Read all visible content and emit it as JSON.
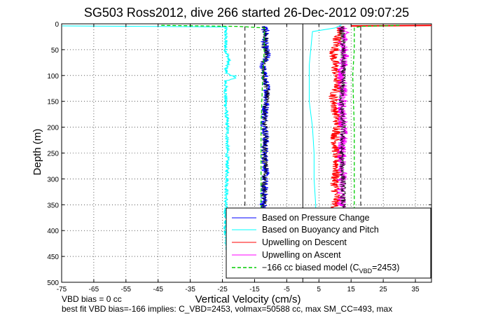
{
  "chart_data": {
    "type": "line",
    "title": "SG503 Ross2012, dive 266 started 26-Dec-2012 09:07:25",
    "xlabel": "Vertical Velocity (cm/s)",
    "ylabel": "Depth (m)",
    "xlim": [
      -75,
      40
    ],
    "ylim": [
      0,
      500
    ],
    "y_reversed": true,
    "xticks": [
      -75,
      -65,
      -55,
      -45,
      -35,
      -25,
      -15,
      -5,
      5,
      15,
      25,
      35
    ],
    "yticks": [
      0,
      50,
      100,
      150,
      200,
      250,
      300,
      350,
      400,
      450,
      500
    ],
    "grid": true,
    "grid_style": "dotted",
    "legend_position": "bottom-right",
    "series": [
      {
        "name": "Based on Pressure Change",
        "color": "#0000ff",
        "noise": 1.2,
        "points": [
          [
            -12,
            5
          ],
          [
            -11.5,
            20
          ],
          [
            -12,
            40
          ],
          [
            -11,
            60
          ],
          [
            -12.5,
            80
          ],
          [
            -12,
            100
          ],
          [
            -11,
            130
          ],
          [
            -11.5,
            160
          ],
          [
            -12,
            190
          ],
          [
            -11.5,
            220
          ],
          [
            -12,
            250
          ],
          [
            -11.5,
            280
          ],
          [
            -12,
            310
          ],
          [
            -12,
            340
          ],
          [
            -12.5,
            360
          ]
        ]
      },
      {
        "name": "Upwelling on Descent",
        "color": "#ff0000",
        "noise": 1.5,
        "points": [
          [
            12,
            5
          ],
          [
            11,
            20
          ],
          [
            10.5,
            40
          ],
          [
            9.5,
            60
          ],
          [
            10,
            80
          ],
          [
            10.5,
            100
          ],
          [
            11,
            120
          ],
          [
            9.5,
            140
          ],
          [
            10,
            160
          ],
          [
            10.5,
            180
          ],
          [
            11,
            200
          ],
          [
            10,
            220
          ],
          [
            10.5,
            250
          ],
          [
            10.5,
            280
          ],
          [
            10,
            310
          ],
          [
            10.5,
            340
          ],
          [
            10,
            360
          ]
        ]
      },
      {
        "name": "Upwelling on Ascent",
        "color": "#ff00ff",
        "noise": 1.5,
        "points": [
          [
            12,
            5
          ],
          [
            13,
            20
          ],
          [
            12.5,
            40
          ],
          [
            13,
            60
          ],
          [
            12.5,
            80
          ],
          [
            12,
            100
          ],
          [
            12.5,
            130
          ],
          [
            12,
            160
          ],
          [
            12.5,
            190
          ],
          [
            12.5,
            220
          ],
          [
            12,
            250
          ],
          [
            12.5,
            280
          ],
          [
            12,
            310
          ],
          [
            12,
            340
          ],
          [
            12,
            360
          ]
        ]
      },
      {
        "name": "Based on Buoyancy and Pitch",
        "color": "#00ffff",
        "noise": 0.6,
        "points": [
          [
            -75,
            4
          ],
          [
            -24,
            6
          ],
          [
            -24,
            50
          ],
          [
            -23,
            70
          ],
          [
            -24,
            90
          ],
          [
            -23,
            100
          ],
          [
            -21,
            100
          ],
          [
            -21,
            105
          ],
          [
            -24,
            110
          ],
          [
            -24,
            150
          ],
          [
            -23.5,
            200
          ],
          [
            -23.5,
            250
          ],
          [
            -23.5,
            300
          ],
          [
            -24,
            350
          ],
          [
            -24,
            400
          ],
          [
            -23.5,
            440
          ]
        ]
      },
      {
        "name": "−166 cc biased model (C_VBD=2453)",
        "color": "#00cc00",
        "dashed": true,
        "noise": 0,
        "points": [
          [
            -44,
            3
          ],
          [
            -20,
            5
          ],
          [
            -12,
            8
          ],
          [
            -12,
            50
          ],
          [
            -12.5,
            100
          ],
          [
            -13,
            200
          ],
          [
            -13,
            300
          ],
          [
            -13,
            360
          ]
        ],
        "points2": [
          [
            30,
            3
          ],
          [
            18,
            5
          ],
          [
            16,
            8
          ],
          [
            16,
            50
          ],
          [
            15.5,
            100
          ],
          [
            16,
            200
          ],
          [
            16,
            300
          ],
          [
            16,
            360
          ]
        ]
      }
    ],
    "secondary_lines": {
      "cyan_ascent": [
        [
          12,
          2
        ],
        [
          10,
          8
        ],
        [
          3,
          15
        ],
        [
          2,
          80
        ],
        [
          2,
          150
        ],
        [
          3,
          200
        ],
        [
          3.5,
          250
        ],
        [
          3.5,
          300
        ],
        [
          4,
          350
        ],
        [
          4,
          360
        ]
      ],
      "black_descent": [
        [
          -12,
          5
        ],
        [
          -11.5,
          20
        ],
        [
          -12,
          40
        ],
        [
          -11,
          60
        ],
        [
          -12.5,
          80
        ],
        [
          -12,
          100
        ],
        [
          -11,
          130
        ],
        [
          -11.5,
          160
        ],
        [
          -12,
          190
        ],
        [
          -11.5,
          220
        ],
        [
          -12,
          250
        ],
        [
          -11.5,
          280
        ],
        [
          -12,
          310
        ],
        [
          -12,
          340
        ],
        [
          -12.5,
          360
        ]
      ],
      "black_ascent": [
        [
          12,
          5
        ],
        [
          12.5,
          40
        ],
        [
          12.5,
          100
        ],
        [
          12,
          150
        ],
        [
          12.5,
          200
        ],
        [
          12,
          250
        ],
        [
          12.5,
          300
        ],
        [
          12.5,
          360
        ]
      ],
      "red_surface": [
        [
          15,
          4
        ],
        [
          40,
          3
        ]
      ]
    },
    "reference_lines": {
      "solid_vertical_x": 0,
      "dashed_vertical_x": [
        -18,
        18
      ]
    },
    "footer": {
      "line1": "VBD bias = 0 cc",
      "line2": "best fit VBD bias=-166 implies: C_VBD=2453, volmax=50588 cc, max SM_CC=493, max"
    }
  }
}
